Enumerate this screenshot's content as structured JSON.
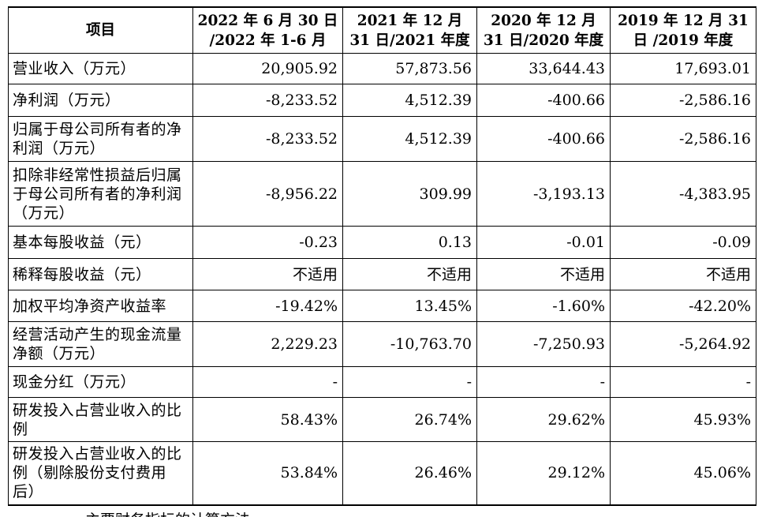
{
  "table": {
    "headers": [
      "项目",
      "2022 年 6 月 30 日 /2022 年 1-6 月",
      "2021 年 12 月 31 日/2021 年度",
      "2020 年 12 月 31 日/2020 年度",
      "2019 年 12 月 31 日 /2019 年度"
    ],
    "rows": [
      {
        "label": "营业收入（万元）",
        "values": [
          "20,905.92",
          "57,873.56",
          "33,644.43",
          "17,693.01"
        ]
      },
      {
        "label": "净利润（万元）",
        "values": [
          "-8,233.52",
          "4,512.39",
          "-400.66",
          "-2,586.16"
        ]
      },
      {
        "label": "归属于母公司所有者的净利润（万元）",
        "values": [
          "-8,233.52",
          "4,512.39",
          "-400.66",
          "-2,586.16"
        ]
      },
      {
        "label": "扣除非经常性损益后归属于母公司所有者的净利润（万元）",
        "values": [
          "-8,956.22",
          "309.99",
          "-3,193.13",
          "-4,383.95"
        ]
      },
      {
        "label": "基本每股收益（元）",
        "values": [
          "-0.23",
          "0.13",
          "-0.01",
          "-0.09"
        ]
      },
      {
        "label": "稀释每股收益（元）",
        "values": [
          "不适用",
          "不适用",
          "不适用",
          "不适用"
        ]
      },
      {
        "label": "加权平均净资产收益率",
        "values": [
          "-19.42%",
          "13.45%",
          "-1.60%",
          "-42.20%"
        ]
      },
      {
        "label": "经营活动产生的现金流量净额（万元）",
        "values": [
          "2,229.23",
          "-10,763.70",
          "-7,250.93",
          "-5,264.92"
        ]
      },
      {
        "label": "现金分红（万元）",
        "values": [
          "-",
          "-",
          "-",
          "-"
        ]
      },
      {
        "label": "研发投入占营业收入的比例",
        "values": [
          "58.43%",
          "26.74%",
          "29.62%",
          "45.93%"
        ]
      },
      {
        "label": "研发投入占营业收入的比例（剔除股份支付费用后）",
        "values": [
          "53.84%",
          "26.46%",
          "29.12%",
          "45.06%"
        ]
      }
    ]
  },
  "footer": {
    "fragment": "主要财务指标的计算方法"
  }
}
